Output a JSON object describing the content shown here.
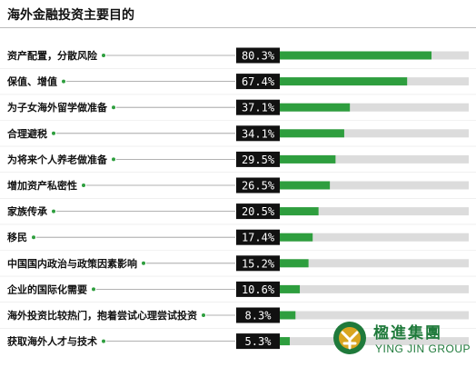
{
  "page": {
    "title": "海外金融投资主要目的"
  },
  "chart_data": {
    "type": "bar",
    "orientation": "horizontal",
    "title": "海外金融投资主要目的",
    "categories": [
      "资产配置，分散风险",
      "保值、增值",
      "为子女海外留学做准备",
      "合理避税",
      "为将来个人养老做准备",
      "增加资产私密性",
      "家族传承",
      "移民",
      "中国国内政治与政策因素影响",
      "企业的国际化需要",
      "海外投资比较热门，抱着尝试心理尝试投资",
      "获取海外人才与技术"
    ],
    "values": [
      80.3,
      67.4,
      37.1,
      34.1,
      29.5,
      26.5,
      20.5,
      17.4,
      15.2,
      10.6,
      8.3,
      5.3
    ],
    "value_labels": [
      "80.3%",
      "67.4%",
      "37.1%",
      "34.1%",
      "29.5%",
      "26.5%",
      "20.5%",
      "17.4%",
      "15.2%",
      "10.6%",
      "8.3%",
      "5.3%"
    ],
    "xlim": [
      0,
      100
    ],
    "unit": "%",
    "colors": {
      "bar": "#2e9e3e",
      "track": "#dcdcdc",
      "label_bg": "#111111",
      "label_text": "#ffffff",
      "leader": "#2e9e3e"
    }
  },
  "logo": {
    "name_cn": "楹進集團",
    "name_en": "YING JIN GROUP",
    "color": "#1f7a3b"
  }
}
